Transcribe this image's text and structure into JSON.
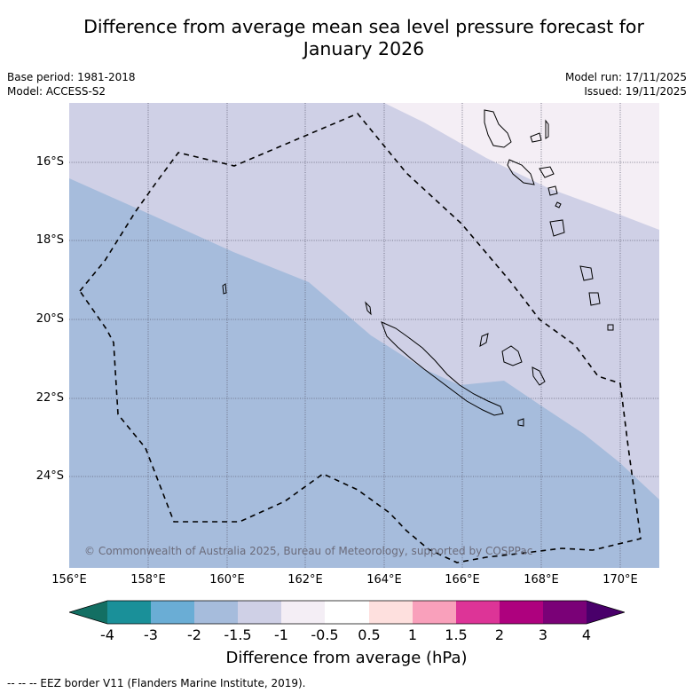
{
  "title_line1": "Difference from average mean sea level pressure forecast for",
  "title_line2": "January 2026",
  "meta_left": {
    "base_period": "Base period: 1981-2018",
    "model": "Model: ACCESS-S2"
  },
  "meta_right": {
    "model_run": "Model run: 17/11/2025",
    "issued": "Issued: 19/11/2025"
  },
  "lat_labels": [
    "16°S",
    "18°S",
    "20°S",
    "22°S",
    "24°S"
  ],
  "lon_labels": [
    "156°E",
    "158°E",
    "160°E",
    "162°E",
    "164°E",
    "166°E",
    "168°E",
    "170°E"
  ],
  "copyright": "© Commonwealth of Australia 2025, Bureau of Meteorology, supported by COSPPac",
  "colorbar": {
    "ticks": [
      "-4",
      "-3",
      "-2",
      "-1.5",
      "-1",
      "-0.5",
      "0.5",
      "1",
      "1.5",
      "2",
      "3",
      "4"
    ],
    "colors": [
      "#136f63",
      "#1a9099",
      "#6aadd5",
      "#a6bcdc",
      "#cfd0e6",
      "#f4eef5",
      "#ffffff",
      "#fee0de",
      "#f9a0bb",
      "#dd3497",
      "#ae017e",
      "#7a0177",
      "#49006a"
    ],
    "label": "Difference from average (hPa)"
  },
  "field_colors": {
    "band_minus2_to_minus1_5": "#a6bcdc",
    "band_minus1_5_to_minus1": "#cfd0e6",
    "band_minus1_to_minus0_5": "#f4eef5"
  },
  "footnote": "--  --  -- EEZ border V11 (Flanders Marine Institute, 2019)."
}
